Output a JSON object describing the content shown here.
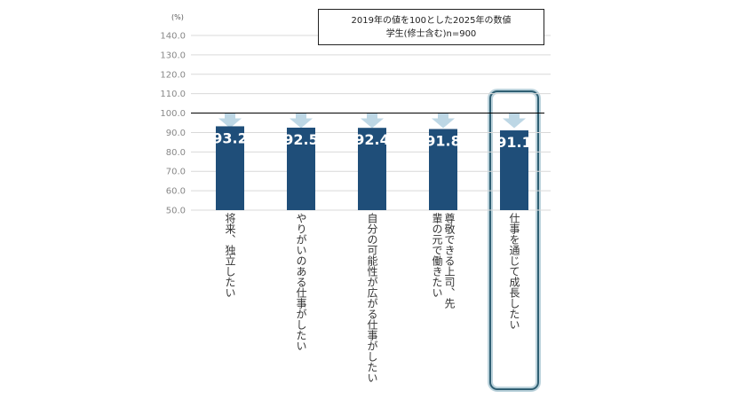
{
  "chart_data": {
    "type": "bar",
    "title_lines": [
      "2019年の値を100とした2025年の数値",
      "学生(修士含む)n=900"
    ],
    "unit_label": "(%)",
    "categories": [
      "将来、独立したい",
      "やりがいのある仕事がしたい",
      "自分の可能性が広がる仕事がしたい",
      "尊敬できる上司、先輩の元で働きたい",
      "仕事を通じて成長したい"
    ],
    "values": [
      93.2,
      92.5,
      92.4,
      91.8,
      91.1
    ],
    "value_labels": [
      "93.2",
      "92.5",
      "92.4",
      "91.8",
      "91.1"
    ],
    "ylim": [
      50,
      140
    ],
    "yticks": [
      "140.0",
      "130.0",
      "120.0",
      "110.0",
      "100.0",
      "90.0",
      "80.0",
      "70.0",
      "60.0",
      "50.0"
    ],
    "reference_line": 100,
    "highlighted_category": "仕事を通じて成長したい",
    "grid": true,
    "colors": {
      "bar": "#1f4e79",
      "arrow": "#bdd7e5",
      "grid": "#d9d9d9",
      "reference": "#000000",
      "highlight_outer": "#2f5f73",
      "highlight_inner": "#bcd3dc"
    }
  }
}
